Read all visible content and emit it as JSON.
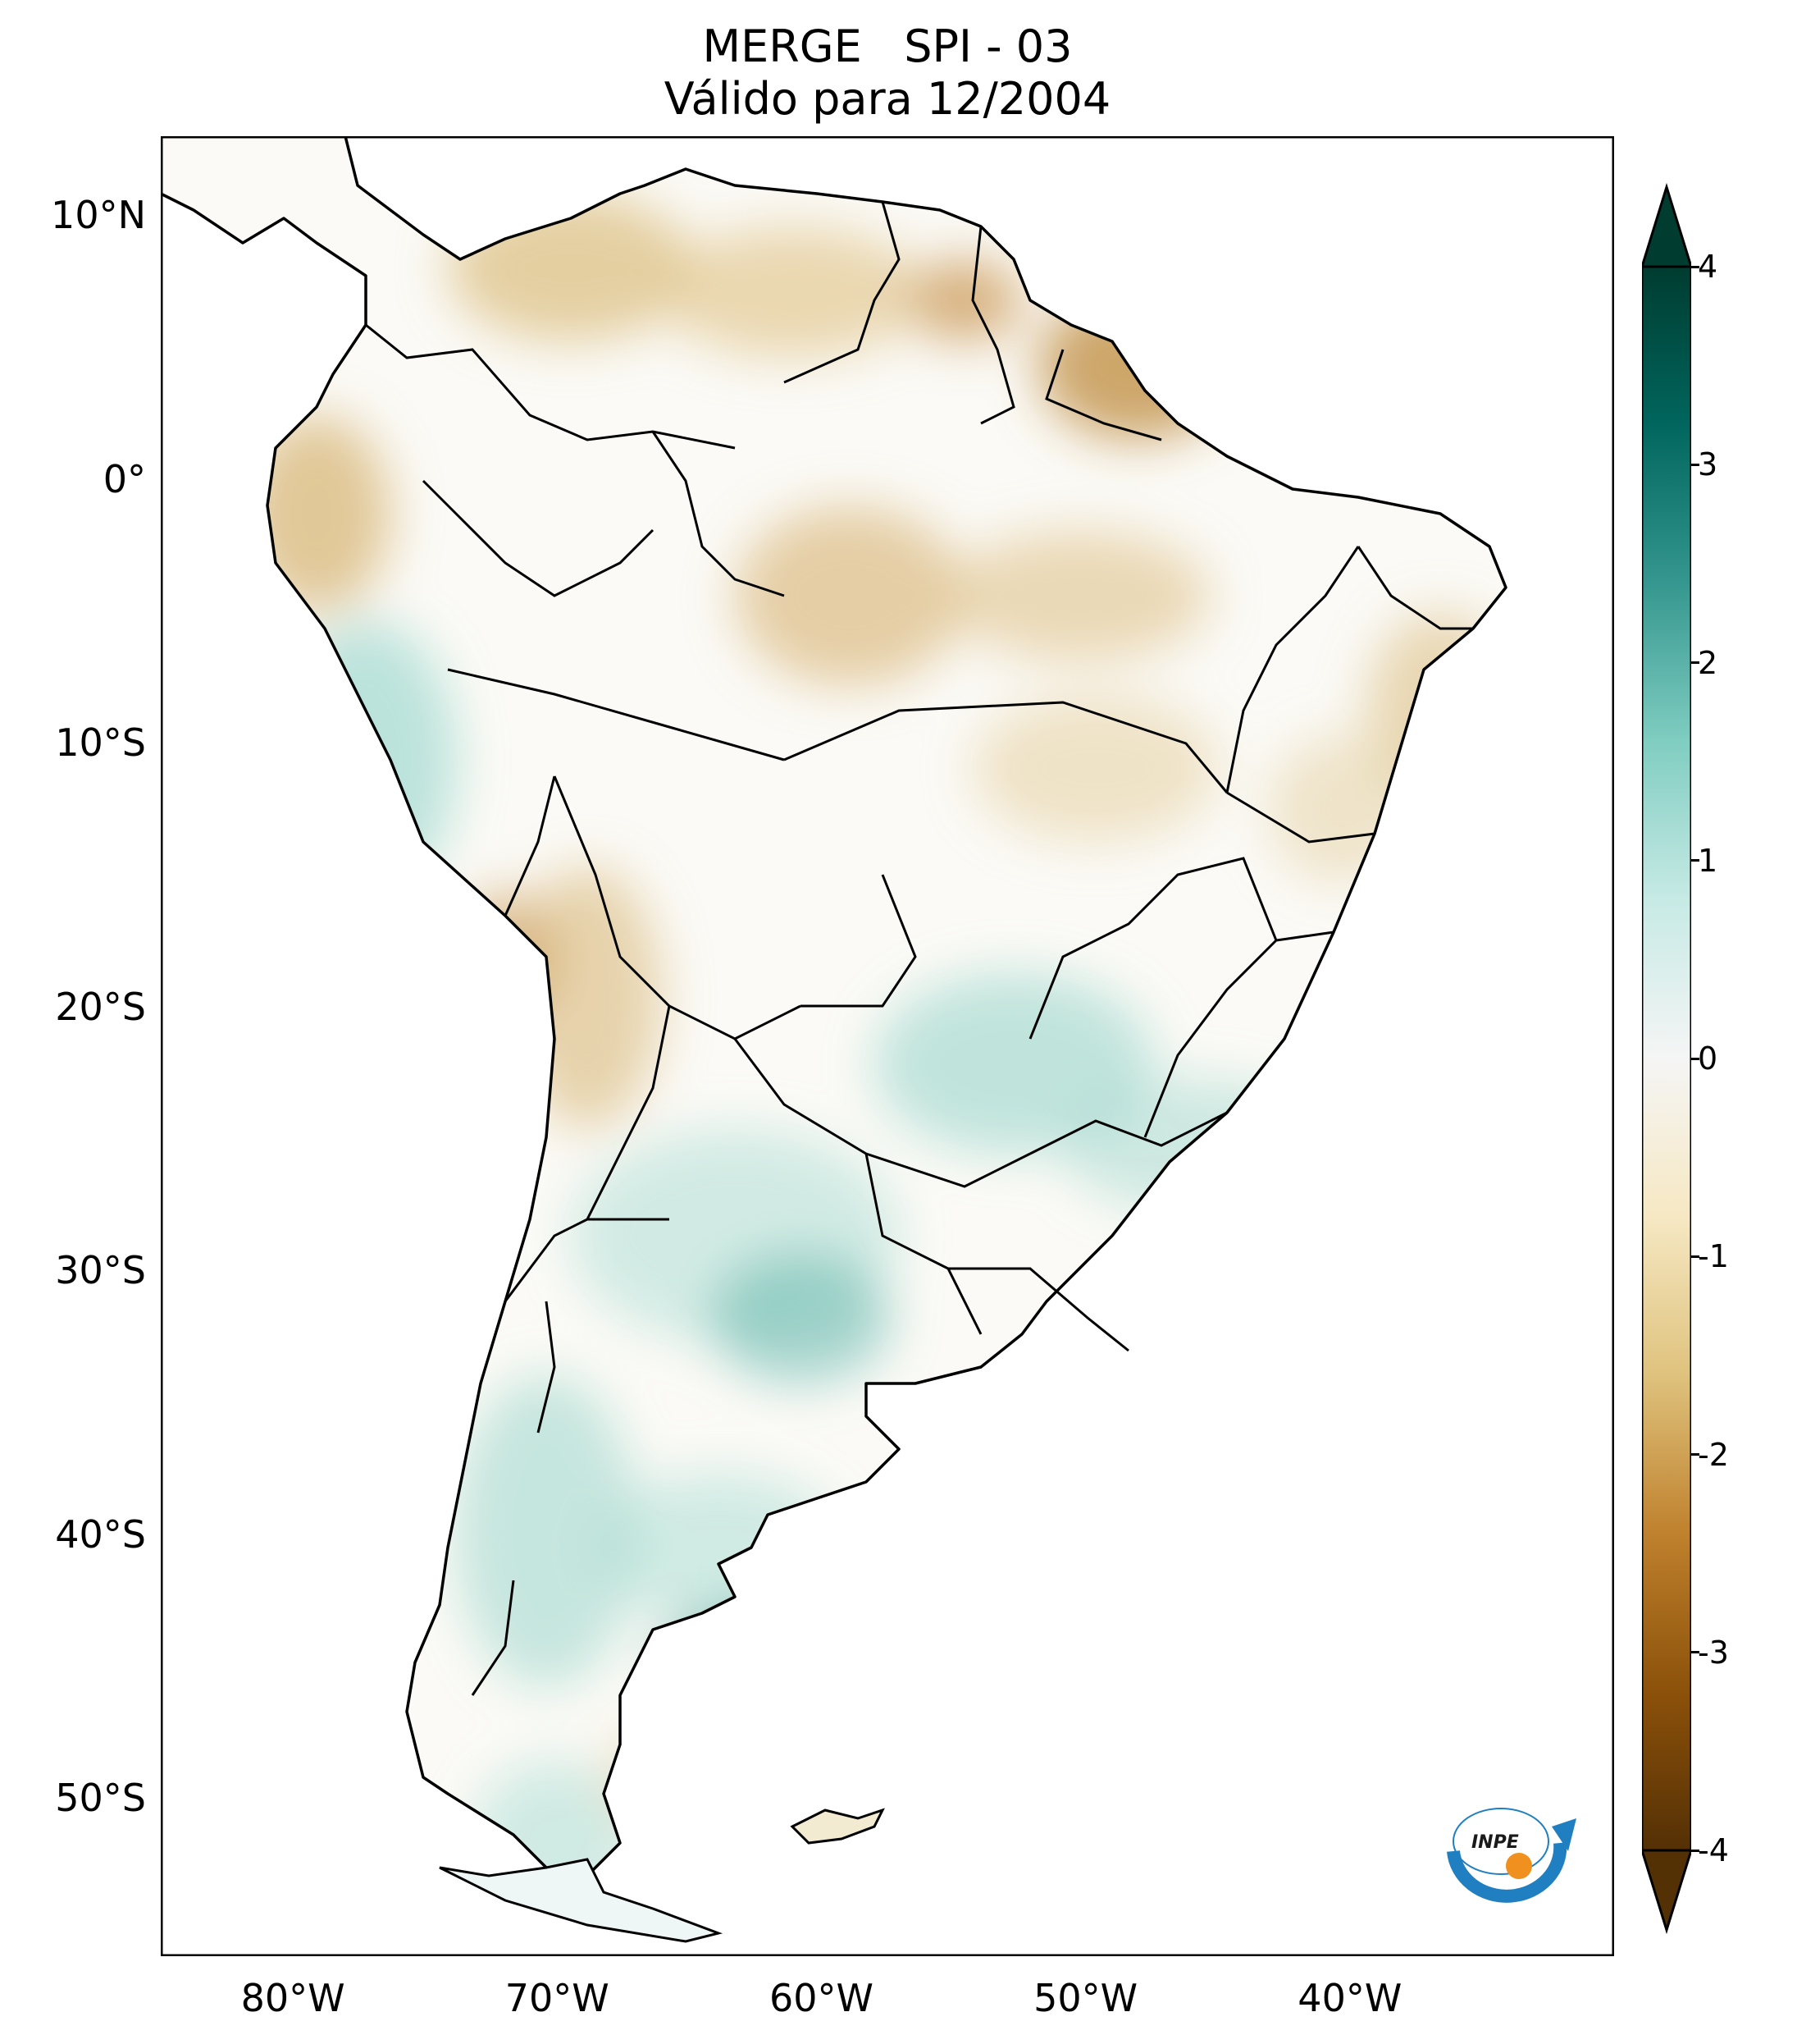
{
  "title": {
    "line1": "MERGE   SPI - 03",
    "line2": "Válido para 12/2004"
  },
  "map": {
    "lon_range": [
      -85,
      -30
    ],
    "lat_range": [
      -56,
      13
    ],
    "y_ticks": [
      {
        "lat": 10,
        "label": "10°N"
      },
      {
        "lat": 0,
        "label": "0°"
      },
      {
        "lat": -10,
        "label": "10°S"
      },
      {
        "lat": -20,
        "label": "20°S"
      },
      {
        "lat": -30,
        "label": "30°S"
      },
      {
        "lat": -40,
        "label": "40°S"
      },
      {
        "lat": -50,
        "label": "50°S"
      }
    ],
    "x_ticks": [
      {
        "lon": -80,
        "label": "80°W"
      },
      {
        "lon": -70,
        "label": "70°W"
      },
      {
        "lon": -60,
        "label": "60°W"
      },
      {
        "lon": -50,
        "label": "50°W"
      },
      {
        "lon": -40,
        "label": "40°W"
      }
    ]
  },
  "colorbar": {
    "min": -4,
    "max": 4,
    "ticks": [
      "4",
      "3",
      "2",
      "1",
      "0",
      "-1",
      "-2",
      "-3",
      "-4"
    ],
    "colors": [
      "#543005",
      "#8c510a",
      "#bf812d",
      "#dfc27d",
      "#f6e8c3",
      "#f5f5f5",
      "#c7eae5",
      "#80cdc1",
      "#35978f",
      "#01665e",
      "#003c30"
    ]
  },
  "logo": {
    "text": "INPE",
    "colors": {
      "blue": "#1f7fc1",
      "orange": "#f0901e"
    }
  }
}
